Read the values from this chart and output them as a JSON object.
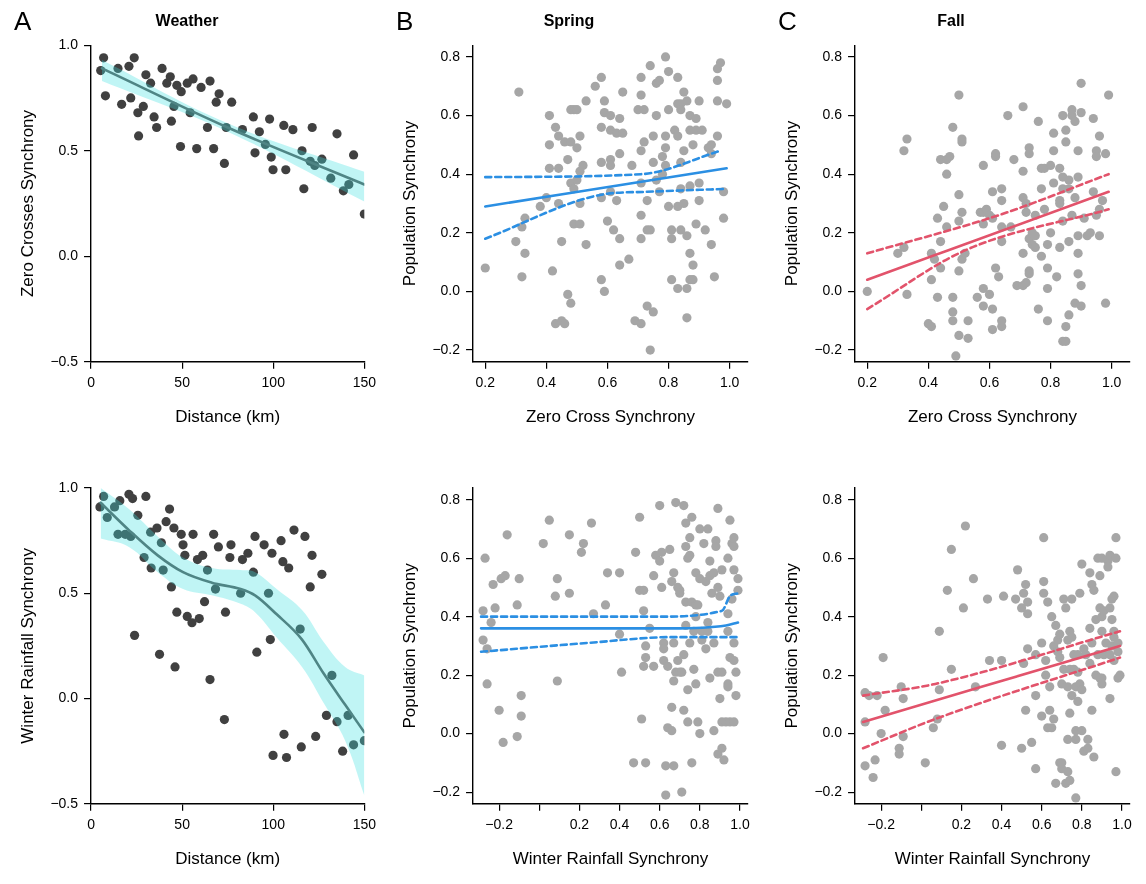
{
  "chart_data": [
    {
      "type": "scatter",
      "title": "Weather",
      "xlabel": "Distance (km)",
      "ylabel": "Zero Crosses Synchrony",
      "annotations": [
        "A"
      ],
      "marker": "circle",
      "xlim": [
        0,
        150
      ],
      "xticks": [
        0,
        50,
        100,
        150
      ],
      "ylim": [
        -0.5,
        1.0
      ],
      "yticks": [
        {
          "value": -0.5,
          "label": "−0.5"
        },
        {
          "value": 0,
          "label": "0.0"
        },
        0.5,
        {
          "value": 1,
          "label": "1.0"
        }
      ],
      "series": [
        {
          "color": "#404040",
          "x": [
            6.9,
            5.3,
            7.9,
            14.8,
            23.7,
            20.8,
            16.8,
            21.8,
            25.7,
            26.1,
            28.7,
            30.1,
            32.7,
            34.6,
            36.0,
            39.0,
            41.6,
            43.5,
            44.1,
            47.1,
            49.5,
            49.1,
            45.5,
            52.8,
            56.0,
            54.4,
            58.0,
            60.4,
            63.9,
            65.3,
            67.3,
            68.7,
            70.3,
            73.2,
            74.2,
            77.2,
            83.1,
            89.1,
            90.0,
            92.4,
            95.7,
            98.0,
            98.9,
            99.9,
            105.8,
            106.9,
            110.8,
            115.8,
            116.8,
            120.3,
            121.4,
            122.8,
            126.7,
            131.6,
            135.0,
            138.5,
            141.5,
            144.1,
            150
          ],
          "values": [
            0.94,
            0.88,
            0.76,
            0.89,
            0.94,
            0.9,
            0.72,
            0.75,
            0.68,
            0.57,
            0.71,
            0.86,
            0.82,
            0.66,
            0.61,
            0.89,
            0.82,
            0.85,
            0.64,
            0.81,
            0.78,
            0.52,
            0.71,
            0.82,
            0.84,
            0.68,
            0.51,
            0.8,
            0.61,
            0.83,
            0.51,
            0.73,
            0.77,
            0.44,
            0.61,
            0.73,
            0.6,
            0.66,
            0.49,
            0.59,
            0.53,
            0.65,
            0.47,
            0.41,
            0.62,
            0.41,
            0.6,
            0.5,
            0.32,
            0.45,
            0.61,
            0.43,
            0.46,
            0.37,
            0.58,
            0.31,
            0.34,
            0.48,
            0.2
          ]
        },
        {
          "type": "line",
          "color": "#4f8585",
          "marker": "none",
          "x": [
            6,
            75,
            150
          ],
          "values": [
            0.89,
            0.61,
            0.34
          ],
          "lower": [
            0.83,
            0.59,
            0.26
          ],
          "upper": [
            0.93,
            0.63,
            0.4
          ]
        }
      ]
    },
    {
      "type": "scatter",
      "title": "Spring",
      "xlabel": "Zero Cross Synchrony",
      "ylabel": "Population Synchrony",
      "annotations": [
        "B"
      ],
      "marker": "circle",
      "xlim": [
        0.16,
        1.06
      ],
      "xticks": [
        0.2,
        0.4,
        0.6,
        0.8,
        {
          "value": 1,
          "label": "1.0"
        }
      ],
      "ylim": [
        -0.24,
        0.84
      ],
      "yticks": [
        {
          "value": -0.2,
          "label": "−0.2"
        },
        {
          "value": 0,
          "label": "0.0"
        },
        0.2,
        0.4,
        0.6,
        0.8
      ],
      "series": [
        {
          "color": "#a6a6a6",
          "x": [
            0.2,
            0.31,
            0.3,
            0.32,
            0.33,
            0.33,
            0.32,
            0.38,
            0.4,
            0.41,
            0.41,
            0.41,
            0.42,
            0.43,
            0.44,
            0.44,
            0.44,
            0.43,
            0.45,
            0.46,
            0.46,
            0.45,
            0.47,
            0.48,
            0.48,
            0.47,
            0.48,
            0.48,
            0.49,
            0.49,
            0.5,
            0.5,
            0.51,
            0.51,
            0.5,
            0.49,
            0.51,
            0.51,
            0.52,
            0.53,
            0.53,
            0.56,
            0.58,
            0.58,
            0.58,
            0.58,
            0.59,
            0.58,
            0.59,
            0.59,
            0.6,
            0.61,
            0.61,
            0.61,
            0.61,
            0.61,
            0.62,
            0.63,
            0.63,
            0.64,
            0.64,
            0.64,
            0.64,
            0.65,
            0.65,
            0.67,
            0.68,
            0.69,
            0.7,
            0.71,
            0.71,
            0.71,
            0.71,
            0.71,
            0.71,
            0.72,
            0.71,
            0.72,
            0.73,
            0.73,
            0.73,
            0.74,
            0.74,
            0.74,
            0.75,
            0.75,
            0.75,
            0.76,
            0.76,
            0.76,
            0.77,
            0.77,
            0.78,
            0.78,
            0.79,
            0.79,
            0.79,
            0.8,
            0.8,
            0.79,
            0.8,
            0.81,
            0.81,
            0.81,
            0.82,
            0.83,
            0.83,
            0.83,
            0.83,
            0.84,
            0.83,
            0.84,
            0.84,
            0.84,
            0.84,
            0.85,
            0.85,
            0.85,
            0.86,
            0.86,
            0.86,
            0.86,
            0.87,
            0.87,
            0.87,
            0.87,
            0.87,
            0.88,
            0.88,
            0.88,
            0.89,
            0.89,
            0.89,
            0.9,
            0.9,
            0.9,
            0.91,
            0.92,
            0.93,
            0.94,
            0.94,
            0.94,
            0.95,
            0.96,
            0.96,
            0.96,
            0.96,
            0.97,
            0.98,
            0.98,
            0.99
          ],
          "values": [
            0.08,
            0.68,
            0.17,
            0.22,
            0.25,
            0.13,
            0.05,
            0.29,
            0.32,
            0.6,
            0.5,
            0.42,
            0.07,
            0.56,
            0.3,
            0.53,
            0.42,
            -0.11,
            -0.1,
            0.51,
            -0.11,
            0.17,
            0.45,
            0.37,
            0.62,
            -0.01,
            -0.04,
            0.51,
            0.35,
            0.62,
            0.62,
            0.49,
            0.53,
            0.3,
            0.38,
            0.23,
            0.23,
            0.41,
            0.43,
            0.16,
            0.65,
            0.7,
            0.56,
            0.44,
            0.73,
            0.32,
            0.65,
            0.04,
            0.0,
            0.61,
            0.24,
            0.55,
            0.45,
            0.43,
            0.6,
            0.34,
            0.21,
            0.54,
            0.31,
            0.18,
            0.09,
            0.59,
            0.47,
            0.68,
            0.54,
            0.11,
            0.43,
            -0.1,
            0.62,
            0.73,
            0.67,
            0.48,
            -0.11,
            0.26,
            0.37,
            0.62,
            0.18,
            0.51,
            0.31,
            0.21,
            -0.05,
            0.77,
            -0.2,
            0.21,
            -0.07,
            0.53,
            0.44,
            0.38,
            0.6,
            0.71,
            0.72,
            0.34,
            0.4,
            0.46,
            0.53,
            0.8,
            0.49,
            0.75,
            0.62,
            0.43,
            0.29,
            0.04,
            0.21,
            0.18,
            0.55,
            0.64,
            0.73,
            0.29,
            0.53,
            0.21,
            0.01,
            0.64,
            0.62,
            0.44,
            0.35,
            0.68,
            0.48,
            0.3,
            0.19,
            0.01,
            -0.09,
            0.65,
            0.6,
            0.55,
            0.04,
            0.13,
            0.36,
            0.09,
            0.04,
            0.5,
            0.23,
            0.59,
            0.55,
            0.37,
            0.31,
            0.65,
            0.55,
            0.21,
            0.49,
            0.16,
            0.47,
            0.5,
            0.05,
            0.65,
            0.53,
            0.72,
            0.76,
            0.78,
            0.25,
            0.34,
            0.64
          ]
        },
        {
          "type": "line",
          "color": "#2b8fe3",
          "marker": "none",
          "x": [
            0.2,
            0.99
          ],
          "values": [
            0.29,
            0.42
          ]
        },
        {
          "type": "line",
          "color": "#2b8fe3",
          "marker": "none",
          "line_style": "dashed",
          "x": [
            0.2,
            0.71,
            0.97
          ],
          "values": [
            0.39,
            0.4,
            0.48
          ]
        },
        {
          "type": "line",
          "color": "#2b8fe3",
          "marker": "none",
          "line_style": "dashed",
          "x": [
            0.2,
            0.58,
            0.73,
            0.99
          ],
          "values": [
            0.18,
            0.33,
            0.34,
            0.35
          ]
        }
      ]
    },
    {
      "type": "scatter",
      "title": "Fall",
      "xlabel": "Zero Cross Synchrony",
      "ylabel": "Population Synchrony",
      "annotations": [
        "C"
      ],
      "marker": "circle",
      "xlim": [
        0.16,
        1.06
      ],
      "xticks": [
        0.2,
        0.4,
        0.6,
        0.8,
        {
          "value": 1,
          "label": "1.0"
        }
      ],
      "ylim": [
        -0.24,
        0.84
      ],
      "yticks": [
        {
          "value": -0.2,
          "label": "−0.2"
        },
        {
          "value": 0,
          "label": "0.0"
        },
        0.2,
        0.4,
        0.6,
        0.8
      ],
      "series": [
        {
          "color": "#a6a6a6",
          "x": [
            0.2,
            0.3,
            0.32,
            0.32,
            0.33,
            0.33,
            0.4,
            0.41,
            0.41,
            0.41,
            0.42,
            0.43,
            0.43,
            0.44,
            0.44,
            0.44,
            0.45,
            0.46,
            0.46,
            0.46,
            0.47,
            0.48,
            0.48,
            0.48,
            0.48,
            0.49,
            0.5,
            0.5,
            0.5,
            0.5,
            0.51,
            0.51,
            0.51,
            0.5,
            0.51,
            0.52,
            0.53,
            0.53,
            0.56,
            0.57,
            0.58,
            0.58,
            0.58,
            0.58,
            0.58,
            0.59,
            0.6,
            0.6,
            0.61,
            0.61,
            0.61,
            0.61,
            0.62,
            0.62,
            0.62,
            0.63,
            0.64,
            0.64,
            0.64,
            0.64,
            0.64,
            0.64,
            0.66,
            0.67,
            0.68,
            0.69,
            0.71,
            0.71,
            0.71,
            0.71,
            0.71,
            0.72,
            0.72,
            0.72,
            0.73,
            0.73,
            0.73,
            0.73,
            0.73,
            0.74,
            0.74,
            0.75,
            0.75,
            0.75,
            0.76,
            0.76,
            0.77,
            0.77,
            0.77,
            0.78,
            0.78,
            0.79,
            0.79,
            0.79,
            0.79,
            0.8,
            0.8,
            0.81,
            0.81,
            0.81,
            0.82,
            0.83,
            0.83,
            0.83,
            0.83,
            0.84,
            0.84,
            0.84,
            0.84,
            0.84,
            0.85,
            0.85,
            0.85,
            0.86,
            0.85,
            0.86,
            0.86,
            0.86,
            0.87,
            0.87,
            0.87,
            0.88,
            0.88,
            0.88,
            0.89,
            0.89,
            0.89,
            0.89,
            0.89,
            0.9,
            0.9,
            0.9,
            0.9,
            0.91,
            0.92,
            0.93,
            0.94,
            0.94,
            0.95,
            0.95,
            0.96,
            0.96,
            0.96,
            0.97,
            0.95,
            0.98,
            0.98,
            0.99
          ],
          "values": [
            0.0,
            0.13,
            0.15,
            0.48,
            0.52,
            -0.01,
            -0.11,
            -0.12,
            0.13,
            0.04,
            0.11,
            -0.02,
            0.25,
            0.45,
            0.17,
            0.08,
            0.29,
            0.22,
            0.45,
            0.4,
            0.46,
            -0.02,
            -0.07,
            0.56,
            -0.1,
            -0.22,
            0.07,
            0.67,
            0.24,
            0.33,
            0.27,
            0.52,
            0.51,
            -0.15,
            0.11,
            0.13,
            -0.1,
            -0.16,
            -0.02,
            0.27,
            -0.05,
            0.27,
            0.43,
            0.01,
            0.23,
            0.28,
            0.26,
            -0.01,
            -0.13,
            -0.06,
            0.34,
            0.25,
            0.46,
            0.47,
            0.08,
            0.05,
            0.35,
            0.31,
            -0.12,
            -0.1,
            0.22,
            0.17,
            0.6,
            0.22,
            0.45,
            0.02,
            0.13,
            0.32,
            0.63,
            0.41,
            0.02,
            0.3,
            0.03,
            0.27,
            0.07,
            0.06,
            0.49,
            0.47,
            0.18,
            0.16,
            0.2,
            0.19,
            0.15,
            0.26,
            -0.06,
            0.58,
            0.35,
            0.12,
            0.42,
            0.42,
            0.28,
            0.08,
            -0.1,
            0.16,
            0.01,
            0.43,
            0.2,
            0.48,
            0.54,
            0.37,
            0.05,
            0.31,
            0.42,
            0.15,
            0.3,
            -0.17,
            0.6,
            0.39,
            0.24,
            0.35,
            -0.12,
            0.51,
            0.55,
            -0.08,
            -0.17,
            0.17,
            0.35,
            0.38,
            0.6,
            0.62,
            0.26,
            0.32,
            0.58,
            -0.04,
            0.06,
            0.13,
            0.19,
            0.48,
            0.39,
            0.02,
            0.61,
            -0.05,
            0.71,
            0.25,
            0.19,
            0.2,
            0.59,
            0.34,
            0.48,
            0.26,
            0.28,
            0.53,
            0.19,
            0.31,
            0.46,
            0.47,
            -0.04,
            0.67
          ]
        },
        {
          "type": "line",
          "color": "#e2536b",
          "marker": "none",
          "x": [
            0.2,
            0.99
          ],
          "values": [
            0.04,
            0.34
          ]
        },
        {
          "type": "line",
          "color": "#e2536b",
          "marker": "none",
          "line_style": "dashed",
          "x": [
            0.2,
            0.63,
            0.99
          ],
          "values": [
            0.13,
            0.26,
            0.4
          ]
        },
        {
          "type": "line",
          "color": "#e2536b",
          "marker": "none",
          "line_style": "dashed",
          "x": [
            0.2,
            0.52,
            0.99
          ],
          "values": [
            -0.06,
            0.14,
            0.28
          ]
        }
      ]
    },
    {
      "type": "scatter",
      "xlabel": "Distance (km)",
      "ylabel": "Winter Rainfall Synchrony",
      "marker": "circle",
      "xlim": [
        0,
        150
      ],
      "xticks": [
        0,
        50,
        100,
        150
      ],
      "ylim": [
        -0.5,
        1.0
      ],
      "yticks": [
        {
          "value": -0.5,
          "label": "−0.5"
        },
        {
          "value": 0,
          "label": "0.0"
        },
        0.5,
        {
          "value": 1,
          "label": "1.0"
        }
      ],
      "series": [
        {
          "color": "#404040",
          "x": [
            4.9,
            6.9,
            8.9,
            12.9,
            15.8,
            14.8,
            18.8,
            20.8,
            22.8,
            21.8,
            23.9,
            25.7,
            29.1,
            30.1,
            32.7,
            33.0,
            36.2,
            37.6,
            38.6,
            39.6,
            41.2,
            43.1,
            44.1,
            45.5,
            46.1,
            47.1,
            49.5,
            50.5,
            51.5,
            52.8,
            55.4,
            56.0,
            59.4,
            58.4,
            61.3,
            62.3,
            63.9,
            65.3,
            67.3,
            68.3,
            69.9,
            73.2,
            73.8,
            76.8,
            76.2,
            82.1,
            83.1,
            86.1,
            89.1,
            90.0,
            91.0,
            95.0,
            97.4,
            98.4,
            99.3,
            99.9,
            104.3,
            105.3,
            105.9,
            107.3,
            108.5,
            111.4,
            114.8,
            115.4,
            117.4,
            120.3,
            121.3,
            123.3,
            126.7,
            129.2,
            132.2,
            135.0,
            138.1,
            141.1,
            144.1,
            150
          ],
          "values": [
            0.91,
            0.96,
            0.86,
            0.91,
            0.94,
            0.78,
            0.78,
            0.97,
            0.95,
            0.77,
            0.3,
            0.87,
            0.67,
            0.96,
            0.79,
            0.62,
            0.81,
            0.21,
            0.74,
            0.61,
            0.84,
            0.9,
            0.53,
            0.81,
            0.15,
            0.41,
            0.78,
            0.73,
            0.68,
            0.39,
            0.36,
            0.78,
            0.38,
            0.66,
            0.68,
            0.46,
            0.61,
            0.09,
            0.78,
            0.52,
            0.72,
            -0.1,
            0.41,
            0.73,
            0.67,
            0.5,
            0.66,
            0.69,
            0.6,
            0.77,
            0.22,
            0.73,
            0.5,
            0.28,
            0.69,
            -0.27,
            0.75,
            0.65,
            -0.17,
            -0.28,
            0.62,
            0.8,
            0.33,
            -0.23,
            0.77,
            0.53,
            0.68,
            -0.18,
            0.59,
            -0.08,
            0.11,
            -0.11,
            -0.25,
            -0.08,
            -0.22,
            -0.2
          ]
        },
        {
          "type": "line",
          "color": "#4f8585",
          "marker": "none",
          "x": [
            5.3,
            20.8,
            36.6,
            50.5,
            66.3,
            82.1,
            90,
            101.9,
            115.8,
            127.6,
            139.5,
            150
          ],
          "values": [
            0.93,
            0.8,
            0.68,
            0.6,
            0.55,
            0.52,
            0.49,
            0.4,
            0.28,
            0.12,
            -0.03,
            -0.16
          ],
          "lower": [
            0.76,
            0.72,
            0.6,
            0.52,
            0.49,
            0.45,
            0.41,
            0.29,
            0.15,
            -0.02,
            -0.2,
            -0.46
          ],
          "upper": [
            1.0,
            0.9,
            0.77,
            0.67,
            0.62,
            0.61,
            0.6,
            0.52,
            0.42,
            0.27,
            0.15,
            0.11
          ]
        }
      ]
    },
    {
      "type": "scatter",
      "xlabel": "Winter Rainfall Synchrony",
      "ylabel": "Population Synchrony",
      "marker": "circle",
      "xlim": [
        -0.33,
        1.04
      ],
      "xticks": [
        {
          "value": -0.2,
          "label": "−0.2"
        },
        {
          "value": 0,
          "label": null
        },
        0.2,
        0.4,
        0.6,
        0.8,
        {
          "value": 1,
          "label": "1.0"
        }
      ],
      "ylim": [
        -0.24,
        0.84
      ],
      "yticks": [
        {
          "value": -0.2,
          "label": "−0.2"
        },
        {
          "value": 0,
          "label": "0.0"
        },
        0.2,
        0.4,
        0.6,
        0.8
      ],
      "series": [
        {
          "color": "#a6a6a6",
          "x": [
            -0.28,
            -0.27,
            -0.28,
            -0.26,
            -0.26,
            -0.24,
            -0.23,
            -0.22,
            -0.2,
            -0.19,
            -0.18,
            -0.17,
            -0.16,
            -0.11,
            -0.11,
            -0.1,
            -0.09,
            -0.09,
            0.02,
            0.05,
            0.08,
            0.09,
            0.09,
            0.15,
            0.15,
            0.21,
            0.22,
            0.26,
            0.27,
            0.33,
            0.34,
            0.4,
            0.4,
            0.41,
            0.47,
            0.48,
            0.5,
            0.5,
            0.51,
            0.52,
            0.52,
            0.53,
            0.53,
            0.53,
            0.52,
            0.55,
            0.57,
            0.57,
            0.58,
            0.6,
            0.6,
            0.61,
            0.61,
            0.62,
            0.62,
            0.62,
            0.63,
            0.63,
            0.64,
            0.64,
            0.65,
            0.66,
            0.66,
            0.66,
            0.67,
            0.67,
            0.67,
            0.67,
            0.68,
            0.68,
            0.69,
            0.69,
            0.7,
            0.7,
            0.7,
            0.71,
            0.71,
            0.72,
            0.72,
            0.72,
            0.73,
            0.73,
            0.73,
            0.73,
            0.74,
            0.74,
            0.74,
            0.75,
            0.75,
            0.75,
            0.76,
            0.76,
            0.76,
            0.77,
            0.77,
            0.78,
            0.78,
            0.78,
            0.78,
            0.79,
            0.79,
            0.8,
            0.8,
            0.8,
            0.81,
            0.81,
            0.82,
            0.83,
            0.83,
            0.84,
            0.84,
            0.84,
            0.85,
            0.85,
            0.85,
            0.86,
            0.87,
            0.87,
            0.87,
            0.88,
            0.88,
            0.89,
            0.89,
            0.89,
            0.89,
            0.9,
            0.9,
            0.91,
            0.91,
            0.91,
            0.91,
            0.92,
            0.93,
            0.94,
            0.94,
            0.94,
            0.94,
            0.94,
            0.95,
            0.95,
            0.95,
            0.96,
            0.96,
            0.97,
            0.97,
            0.97,
            0.97,
            0.97,
            0.97,
            0.98,
            0.98,
            0.99,
            0.99
          ],
          "values": [
            0.42,
            0.6,
            0.32,
            0.29,
            0.17,
            0.38,
            0.51,
            0.43,
            0.08,
            0.53,
            -0.03,
            0.54,
            0.68,
            0.44,
            -0.01,
            0.53,
            0.13,
            0.06,
            0.65,
            0.73,
            0.47,
            0.18,
            0.53,
            0.48,
            0.68,
            0.62,
            0.65,
            0.72,
            0.41,
            0.44,
            0.55,
            0.34,
            0.55,
            0.21,
            -0.1,
            0.62,
            0.49,
            0.74,
            0.05,
            0.49,
            0.42,
            -0.1,
            0.3,
            0.26,
            0.23,
            0.36,
            0.54,
            0.23,
            0.61,
            0.78,
            0.59,
            0.5,
            0.62,
            0.31,
            0.29,
            0.25,
            -0.11,
            -0.21,
            0.02,
            0.23,
            0.63,
            0.01,
            0.52,
            0.09,
            0.55,
            -0.11,
            0.18,
            0.31,
            0.21,
            0.79,
            0.5,
            0.25,
            0.49,
            0.48,
            0.21,
            -0.2,
            0.21,
            0.78,
            0.27,
            0.08,
            0.72,
            0.45,
            0.64,
            0.37,
            0.15,
            0.04,
            0.6,
            0.31,
            0.61,
            0.67,
            0.74,
            0.45,
            -0.1,
            0.35,
            0.22,
            0.55,
            0.44,
            0.17,
            0.4,
            0.04,
            0.44,
            0.7,
            0.0,
            0.53,
            0.32,
            0.35,
            0.65,
            0.52,
            0.29,
            0.38,
            0.7,
            0.35,
            0.59,
            0.19,
            0.54,
            0.48,
            0.01,
            0.31,
            0.55,
            0.66,
            0.64,
            0.77,
            0.21,
            -0.07,
            0.5,
            0.47,
            0.12,
            -0.05,
            0.56,
            0.21,
            0.04,
            -0.09,
            0.04,
            0.6,
            0.41,
            0.17,
            0.16,
            0.35,
            0.26,
            0.73,
            0.04,
            0.65,
            0.46,
            0.67,
            0.25,
            0.04,
            0.56,
            0.64,
            0.31,
            0.21,
            0.13,
            0.53,
            0.49
          ]
        },
        {
          "type": "line",
          "color": "#2b8fe3",
          "marker": "none",
          "x": [
            -0.29,
            0.66,
            0.93,
            0.99
          ],
          "values": [
            0.36,
            0.36,
            0.37,
            0.38
          ]
        },
        {
          "type": "line",
          "color": "#2b8fe3",
          "marker": "none",
          "line_style": "dashed",
          "x": [
            -0.29,
            0.58,
            0.91,
            0.95,
            0.99
          ],
          "values": [
            0.4,
            0.4,
            0.42,
            0.47,
            0.48
          ]
        },
        {
          "type": "line",
          "color": "#2b8fe3",
          "marker": "none",
          "line_style": "dashed",
          "x": [
            -0.29,
            0.24,
            0.66,
            0.99
          ],
          "values": [
            0.28,
            0.31,
            0.33,
            0.33
          ]
        }
      ]
    },
    {
      "type": "scatter",
      "xlabel": "Winter Rainfall Synchrony",
      "ylabel": "Population Synchrony",
      "marker": "circle",
      "xlim": [
        -0.33,
        1.04
      ],
      "xticks": [
        {
          "value": -0.2,
          "label": "−0.2"
        },
        {
          "value": 0,
          "label": null
        },
        0.2,
        0.4,
        0.6,
        0.8,
        {
          "value": 1,
          "label": "1.0"
        }
      ],
      "ylim": [
        -0.24,
        0.84
      ],
      "yticks": [
        {
          "value": -0.2,
          "label": "−0.2"
        },
        {
          "value": 0,
          "label": "0.0"
        },
        0.2,
        0.4,
        0.6,
        0.8
      ],
      "series": [
        {
          "color": "#a6a6a6",
          "x": [
            -0.28,
            -0.26,
            -0.28,
            -0.28,
            -0.24,
            -0.23,
            -0.22,
            -0.2,
            -0.19,
            -0.18,
            -0.11,
            -0.11,
            -0.1,
            -0.09,
            -0.09,
            0.02,
            0.06,
            0.08,
            0.09,
            0.09,
            0.13,
            0.15,
            0.15,
            0.21,
            0.22,
            0.26,
            0.27,
            0.33,
            0.34,
            0.4,
            0.4,
            0.41,
            0.47,
            0.48,
            0.5,
            0.5,
            0.51,
            0.51,
            0.52,
            0.52,
            0.53,
            0.53,
            0.53,
            0.55,
            0.57,
            0.57,
            0.57,
            0.6,
            0.6,
            0.61,
            0.61,
            0.61,
            0.62,
            0.62,
            0.63,
            0.63,
            0.64,
            0.64,
            0.65,
            0.65,
            0.66,
            0.66,
            0.67,
            0.67,
            0.68,
            0.68,
            0.69,
            0.69,
            0.69,
            0.7,
            0.7,
            0.7,
            0.71,
            0.71,
            0.72,
            0.72,
            0.73,
            0.73,
            0.73,
            0.73,
            0.74,
            0.74,
            0.74,
            0.74,
            0.75,
            0.75,
            0.75,
            0.76,
            0.76,
            0.77,
            0.77,
            0.77,
            0.77,
            0.78,
            0.78,
            0.78,
            0.79,
            0.79,
            0.8,
            0.8,
            0.8,
            0.81,
            0.81,
            0.82,
            0.83,
            0.83,
            0.84,
            0.84,
            0.84,
            0.85,
            0.85,
            0.85,
            0.86,
            0.86,
            0.87,
            0.87,
            0.88,
            0.88,
            0.89,
            0.89,
            0.89,
            0.9,
            0.9,
            0.9,
            0.9,
            0.9,
            0.91,
            0.91,
            0.92,
            0.93,
            0.93,
            0.94,
            0.94,
            0.94,
            0.94,
            0.95,
            0.95,
            0.95,
            0.96,
            0.96,
            0.96,
            0.96,
            0.97,
            0.97,
            0.97,
            0.98,
            0.98,
            0.98,
            0.99
          ],
          "values": [
            0.14,
            0.13,
            0.04,
            -0.11,
            -0.15,
            -0.09,
            0.13,
            0.0,
            0.26,
            0.08,
            -0.05,
            -0.07,
            0.16,
            -0.01,
            0.12,
            -0.1,
            0.02,
            0.05,
            0.35,
            0.15,
            0.49,
            0.63,
            0.22,
            0.43,
            0.71,
            0.53,
            0.16,
            0.46,
            0.25,
            -0.04,
            0.25,
            0.47,
            0.46,
            0.56,
            -0.05,
            0.43,
            0.48,
            0.24,
            0.51,
            0.08,
            0.41,
            0.29,
            0.45,
            -0.03,
            0.27,
            0.13,
            -0.12,
            0.31,
            0.06,
            0.48,
            0.67,
            0.52,
            0.2,
            0.25,
            0.02,
            0.45,
            0.08,
            0.16,
            0.02,
            0.4,
            0.3,
            0.05,
            0.37,
            -0.17,
            0.32,
            0.28,
            0.34,
            -0.1,
            0.26,
            -0.12,
            -0.1,
            0.17,
            0.22,
            0.46,
            -0.17,
            0.43,
            -0.13,
            0.32,
            -0.02,
            0.16,
            0.07,
            -0.16,
            0.22,
            0.35,
            0.33,
            0.46,
            0.13,
            0.22,
            0.27,
            -0.02,
            -0.22,
            0.01,
            0.16,
            0.21,
            0.11,
            0.27,
            0.48,
            0.17,
            0.01,
            0.58,
            0.15,
            -0.06,
            0.29,
            0.27,
            -0.05,
            -0.02,
            0.24,
            0.36,
            0.55,
            0.51,
            0.08,
            0.31,
            0.49,
            -0.08,
            0.2,
            0.39,
            0.6,
            0.27,
            0.54,
            0.19,
            0.43,
            0.35,
            0.6,
            0.17,
            0.19,
            0.4,
            0.42,
            0.27,
            0.31,
            0.59,
            0.57,
            0.43,
            0.12,
            0.27,
            0.61,
            0.39,
            0.46,
            0.3,
            0.35,
            0.25,
            0.33,
            0.47,
            0.67,
            -0.13,
            0.6,
            0.19,
            0.31,
            0.28,
            0.2
          ]
        },
        {
          "type": "line",
          "color": "#e2536b",
          "marker": "none",
          "x": [
            -0.29,
            0.99
          ],
          "values": [
            0.04,
            0.3
          ]
        },
        {
          "type": "line",
          "color": "#e2536b",
          "marker": "none",
          "line_style": "dashed",
          "x": [
            -0.29,
            0.07,
            0.99
          ],
          "values": [
            0.13,
            0.17,
            0.35
          ]
        },
        {
          "type": "line",
          "color": "#e2536b",
          "marker": "none",
          "line_style": "dashed",
          "x": [
            -0.29,
            0.07,
            0.99
          ],
          "values": [
            -0.05,
            0.05,
            0.26
          ]
        }
      ]
    }
  ]
}
